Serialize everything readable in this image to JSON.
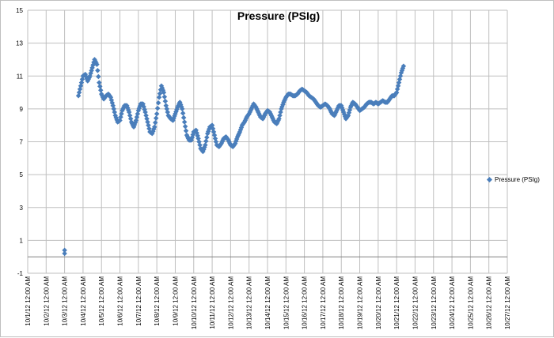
{
  "chart_data": {
    "type": "scatter",
    "title": "Pressure (PSIg)",
    "ylim": [
      -1,
      15
    ],
    "yticks": [
      -1,
      1,
      3,
      5,
      7,
      9,
      11,
      13,
      15
    ],
    "xlim": [
      "10/1/12 12:00 AM",
      "10/27/12 12:00 AM"
    ],
    "xticks": [
      "10/1/12 12:00 AM",
      "10/2/12 12:00 AM",
      "10/3/12 12:00 AM",
      "10/4/12 12:00 AM",
      "10/5/12 12:00 AM",
      "10/6/12 12:00 AM",
      "10/7/12 12:00 AM",
      "10/8/12 12:00 AM",
      "10/9/12 12:00 AM",
      "10/10/12 12:00 AM",
      "10/11/12 12:00 AM",
      "10/12/12 12:00 AM",
      "10/13/12 12:00 AM",
      "10/14/12 12:00 AM",
      "10/15/12 12:00 AM",
      "10/16/12 12:00 AM",
      "10/17/12 12:00 AM",
      "10/18/12 12:00 AM",
      "10/19/12 12:00 AM",
      "10/20/12 12:00 AM",
      "10/21/12 12:00 AM",
      "10/22/12 12:00 AM",
      "10/23/12 12:00 AM",
      "10/24/12 12:00 AM",
      "10/25/12 12:00 AM",
      "10/26/12 12:00 AM",
      "10/27/12 12:00 AM"
    ],
    "grid": true,
    "legend": "right",
    "marker_color": "#4a7ebb",
    "series": [
      {
        "name": "Pressure (PSIg)",
        "points": [
          [
            "10/3/12 12:00 AM",
            0.4
          ],
          [
            "10/3/12 12:00 AM",
            0.2
          ],
          [
            "10/3/12 6:00 PM",
            9.8
          ],
          [
            "10/3/12 9:00 PM",
            10.4
          ],
          [
            "10/4/12 12:00 AM",
            11.0
          ],
          [
            "10/4/12 3:00 AM",
            11.1
          ],
          [
            "10/4/12 6:00 AM",
            10.7
          ],
          [
            "10/4/12 9:00 AM",
            11.0
          ],
          [
            "10/4/12 12:00 PM",
            11.5
          ],
          [
            "10/4/12 3:00 PM",
            12.0
          ],
          [
            "10/4/12 6:00 PM",
            11.7
          ],
          [
            "10/4/12 9:00 PM",
            10.6
          ],
          [
            "10/5/12 12:00 AM",
            9.9
          ],
          [
            "10/5/12 3:00 AM",
            9.6
          ],
          [
            "10/5/12 6:00 AM",
            9.8
          ],
          [
            "10/5/12 9:00 AM",
            9.9
          ],
          [
            "10/5/12 12:00 PM",
            9.7
          ],
          [
            "10/5/12 3:00 PM",
            9.2
          ],
          [
            "10/5/12 6:00 PM",
            8.6
          ],
          [
            "10/5/12 9:00 PM",
            8.2
          ],
          [
            "10/6/12 12:00 AM",
            8.3
          ],
          [
            "10/6/12 3:00 AM",
            8.9
          ],
          [
            "10/6/12 6:00 AM",
            9.2
          ],
          [
            "10/6/12 9:00 AM",
            9.2
          ],
          [
            "10/6/12 12:00 PM",
            8.8
          ],
          [
            "10/6/12 3:00 PM",
            8.2
          ],
          [
            "10/6/12 6:00 PM",
            7.9
          ],
          [
            "10/6/12 9:00 PM",
            8.3
          ],
          [
            "10/7/12 12:00 AM",
            8.9
          ],
          [
            "10/7/12 3:00 AM",
            9.3
          ],
          [
            "10/7/12 6:00 AM",
            9.3
          ],
          [
            "10/7/12 9:00 AM",
            8.8
          ],
          [
            "10/7/12 12:00 PM",
            8.2
          ],
          [
            "10/7/12 3:00 PM",
            7.6
          ],
          [
            "10/7/12 6:00 PM",
            7.5
          ],
          [
            "10/7/12 9:00 PM",
            7.9
          ],
          [
            "10/8/12 12:00 AM",
            8.7
          ],
          [
            "10/8/12 3:00 AM",
            9.7
          ],
          [
            "10/8/12 6:00 AM",
            10.4
          ],
          [
            "10/8/12 9:00 AM",
            10.0
          ],
          [
            "10/8/12 12:00 PM",
            9.2
          ],
          [
            "10/8/12 3:00 PM",
            8.6
          ],
          [
            "10/8/12 6:00 PM",
            8.4
          ],
          [
            "10/8/12 9:00 PM",
            8.3
          ],
          [
            "10/9/12 12:00 AM",
            8.7
          ],
          [
            "10/9/12 3:00 AM",
            9.1
          ],
          [
            "10/9/12 6:00 AM",
            9.4
          ],
          [
            "10/9/12 9:00 AM",
            9.0
          ],
          [
            "10/9/12 12:00 PM",
            8.2
          ],
          [
            "10/9/12 3:00 PM",
            7.4
          ],
          [
            "10/9/12 6:00 PM",
            7.1
          ],
          [
            "10/9/12 9:00 PM",
            7.1
          ],
          [
            "10/10/12 12:00 AM",
            7.6
          ],
          [
            "10/10/12 3:00 AM",
            7.7
          ],
          [
            "10/10/12 6:00 AM",
            7.2
          ],
          [
            "10/10/12 9:00 AM",
            6.6
          ],
          [
            "10/10/12 12:00 PM",
            6.4
          ],
          [
            "10/10/12 3:00 PM",
            6.8
          ],
          [
            "10/10/12 6:00 PM",
            7.5
          ],
          [
            "10/10/12 9:00 PM",
            7.9
          ],
          [
            "10/11/12 12:00 AM",
            8.0
          ],
          [
            "10/11/12 3:00 AM",
            7.4
          ],
          [
            "10/11/12 6:00 AM",
            6.8
          ],
          [
            "10/11/12 9:00 AM",
            6.7
          ],
          [
            "10/11/12 12:00 PM",
            6.9
          ],
          [
            "10/11/12 3:00 PM",
            7.2
          ],
          [
            "10/11/12 6:00 PM",
            7.3
          ],
          [
            "10/11/12 9:00 PM",
            7.1
          ],
          [
            "10/12/12 12:00 AM",
            6.8
          ],
          [
            "10/12/12 3:00 AM",
            6.7
          ],
          [
            "10/12/12 6:00 AM",
            6.9
          ],
          [
            "10/12/12 9:00 AM",
            7.3
          ],
          [
            "10/12/12 12:00 PM",
            7.6
          ],
          [
            "10/12/12 3:00 PM",
            8.0
          ],
          [
            "10/12/12 6:00 PM",
            8.2
          ],
          [
            "10/12/12 9:00 PM",
            8.5
          ],
          [
            "10/13/12 12:00 AM",
            8.7
          ],
          [
            "10/13/12 3:00 AM",
            9.0
          ],
          [
            "10/13/12 6:00 AM",
            9.3
          ],
          [
            "10/13/12 9:00 AM",
            9.1
          ],
          [
            "10/13/12 12:00 PM",
            8.8
          ],
          [
            "10/13/12 3:00 PM",
            8.5
          ],
          [
            "10/13/12 6:00 PM",
            8.4
          ],
          [
            "10/13/12 9:00 PM",
            8.7
          ],
          [
            "10/14/12 12:00 AM",
            8.9
          ],
          [
            "10/14/12 3:00 AM",
            8.8
          ],
          [
            "10/14/12 6:00 AM",
            8.5
          ],
          [
            "10/14/12 9:00 AM",
            8.2
          ],
          [
            "10/14/12 12:00 PM",
            8.1
          ],
          [
            "10/14/12 3:00 PM",
            8.4
          ],
          [
            "10/14/12 6:00 PM",
            9.0
          ],
          [
            "10/14/12 9:00 PM",
            9.4
          ],
          [
            "10/15/12 12:00 AM",
            9.7
          ],
          [
            "10/15/12 3:00 AM",
            9.9
          ],
          [
            "10/15/12 6:00 AM",
            9.9
          ],
          [
            "10/15/12 9:00 AM",
            9.8
          ],
          [
            "10/15/12 12:00 PM",
            9.8
          ],
          [
            "10/15/12 3:00 PM",
            9.9
          ],
          [
            "10/15/12 6:00 PM",
            10.1
          ],
          [
            "10/15/12 9:00 PM",
            10.2
          ],
          [
            "10/16/12 12:00 AM",
            10.1
          ],
          [
            "10/16/12 3:00 AM",
            10.0
          ],
          [
            "10/16/12 6:00 AM",
            9.8
          ],
          [
            "10/16/12 9:00 AM",
            9.7
          ],
          [
            "10/16/12 12:00 PM",
            9.6
          ],
          [
            "10/16/12 3:00 PM",
            9.4
          ],
          [
            "10/16/12 6:00 PM",
            9.2
          ],
          [
            "10/16/12 9:00 PM",
            9.1
          ],
          [
            "10/17/12 12:00 AM",
            9.2
          ],
          [
            "10/17/12 3:00 AM",
            9.3
          ],
          [
            "10/17/12 6:00 AM",
            9.2
          ],
          [
            "10/17/12 9:00 AM",
            9.0
          ],
          [
            "10/17/12 12:00 PM",
            8.7
          ],
          [
            "10/17/12 3:00 PM",
            8.6
          ],
          [
            "10/17/12 6:00 PM",
            8.9
          ],
          [
            "10/17/12 9:00 PM",
            9.2
          ],
          [
            "10/18/12 12:00 AM",
            9.2
          ],
          [
            "10/18/12 3:00 AM",
            8.8
          ],
          [
            "10/18/12 6:00 AM",
            8.4
          ],
          [
            "10/18/12 9:00 AM",
            8.6
          ],
          [
            "10/18/12 12:00 PM",
            9.1
          ],
          [
            "10/18/12 3:00 PM",
            9.4
          ],
          [
            "10/18/12 6:00 PM",
            9.3
          ],
          [
            "10/18/12 9:00 PM",
            9.1
          ],
          [
            "10/19/12 12:00 AM",
            8.9
          ],
          [
            "10/19/12 3:00 AM",
            9.0
          ],
          [
            "10/19/12 6:00 AM",
            9.1
          ],
          [
            "10/19/12 9:00 AM",
            9.3
          ],
          [
            "10/19/12 12:00 PM",
            9.4
          ],
          [
            "10/19/12 3:00 PM",
            9.4
          ],
          [
            "10/19/12 6:00 PM",
            9.3
          ],
          [
            "10/19/12 9:00 PM",
            9.4
          ],
          [
            "10/20/12 12:00 AM",
            9.3
          ],
          [
            "10/20/12 3:00 AM",
            9.4
          ],
          [
            "10/20/12 6:00 AM",
            9.5
          ],
          [
            "10/20/12 9:00 AM",
            9.4
          ],
          [
            "10/20/12 12:00 PM",
            9.4
          ],
          [
            "10/20/12 3:00 PM",
            9.6
          ],
          [
            "10/20/12 6:00 PM",
            9.8
          ],
          [
            "10/20/12 9:00 PM",
            9.8
          ],
          [
            "10/21/12 12:00 AM",
            10.0
          ],
          [
            "10/21/12 3:00 AM",
            10.6
          ],
          [
            "10/21/12 6:00 AM",
            11.2
          ],
          [
            "10/21/12 9:00 AM",
            11.6
          ]
        ]
      }
    ]
  }
}
